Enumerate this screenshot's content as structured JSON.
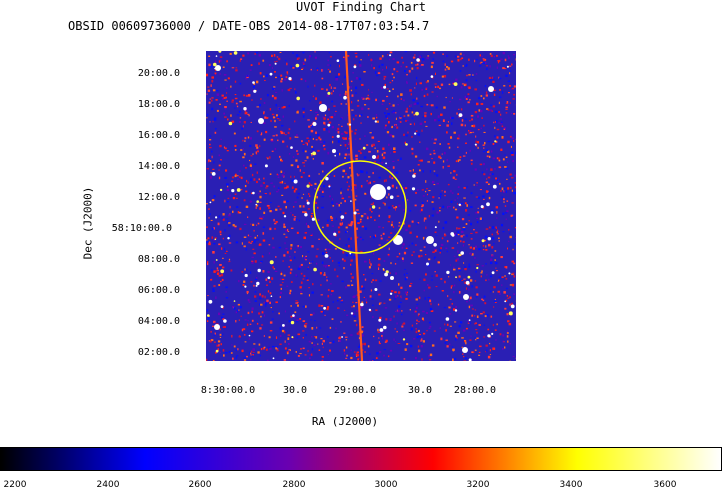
{
  "chart_data": {
    "type": "heatmap",
    "title": "UVOT Finding Chart",
    "subtitle": "OBSID 00609736000 / DATE-OBS 2014-08-17T07:03:54.7",
    "xlabel": "RA (J2000)",
    "ylabel": "Dec (J2000)",
    "x_ticks": [
      "8:30:00.0",
      "30.0",
      "29:00.0",
      "30.0",
      "28:00.0"
    ],
    "y_ticks": [
      "20:00.0",
      "18:00.0",
      "16:00.0",
      "14:00.0",
      "12:00.0",
      "58:10:00.0",
      "08:00.0",
      "06:00.0",
      "04:00.0",
      "02:00.0"
    ],
    "colorbar": {
      "ticks": [
        "2200",
        "2400",
        "2600",
        "2800",
        "3000",
        "3200",
        "3400",
        "3600"
      ],
      "range": [
        2200,
        3700
      ],
      "colors": [
        "#000000",
        "#0000ff",
        "#6a00b0",
        "#ff0000",
        "#ffff00",
        "#ffffff"
      ]
    },
    "marker": {
      "shape": "circle",
      "color": "#ffff00"
    }
  }
}
